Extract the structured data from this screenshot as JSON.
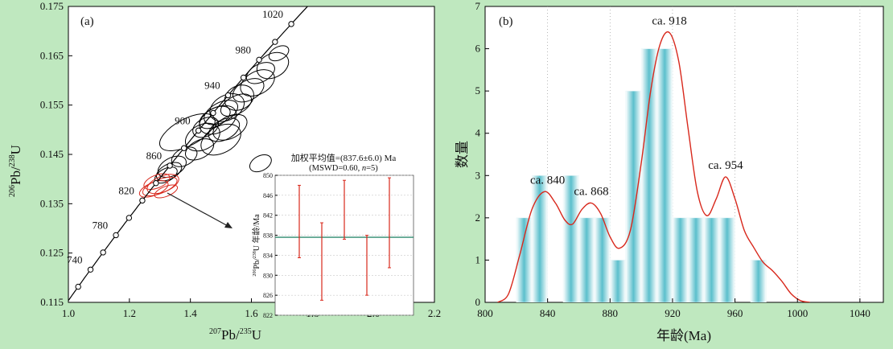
{
  "chart_data": [
    {
      "type": "scatter",
      "panel_label": "(a)",
      "xlim": [
        1.0,
        2.2
      ],
      "ylim": [
        0.115,
        0.175
      ],
      "x_ticks": [
        1.0,
        1.2,
        1.4,
        1.6,
        1.8,
        2.0,
        2.2
      ],
      "x_tick_labels": [
        "1.0",
        "1.2",
        "1.4",
        "1.6",
        "1.8",
        "2.0",
        "2.2"
      ],
      "y_ticks": [
        0.115,
        0.125,
        0.135,
        0.145,
        0.155,
        0.165,
        0.175
      ],
      "y_tick_labels": [
        "0.115",
        "0.125",
        "0.135",
        "0.145",
        "0.155",
        "0.165",
        "0.175"
      ],
      "xlabel": {
        "sup": "207",
        "main": "Pb/",
        "sup2": "235",
        "end": "U"
      },
      "ylabel": {
        "sup": "206",
        "main": "Pb/",
        "sup2": "238",
        "end": "U"
      },
      "concordia_age_labels": [
        "740",
        "780",
        "820",
        "860",
        "900",
        "940",
        "980",
        "1020"
      ],
      "ellipses_black": [
        {
          "x": 1.69,
          "y": 0.1655,
          "rx": 0.035,
          "ry": 0.0013
        },
        {
          "x": 1.67,
          "y": 0.163,
          "rx": 0.055,
          "ry": 0.0024
        },
        {
          "x": 1.63,
          "y": 0.1615,
          "rx": 0.05,
          "ry": 0.0018
        },
        {
          "x": 1.62,
          "y": 0.1595,
          "rx": 0.06,
          "ry": 0.0023
        },
        {
          "x": 1.59,
          "y": 0.158,
          "rx": 0.055,
          "ry": 0.002
        },
        {
          "x": 1.56,
          "y": 0.1565,
          "rx": 0.05,
          "ry": 0.0024
        },
        {
          "x": 1.55,
          "y": 0.155,
          "rx": 0.055,
          "ry": 0.0018
        },
        {
          "x": 1.52,
          "y": 0.1545,
          "rx": 0.06,
          "ry": 0.0025
        },
        {
          "x": 1.5,
          "y": 0.1535,
          "rx": 0.06,
          "ry": 0.002
        },
        {
          "x": 1.49,
          "y": 0.152,
          "rx": 0.065,
          "ry": 0.0025
        },
        {
          "x": 1.48,
          "y": 0.1525,
          "rx": 0.055,
          "ry": 0.0018
        },
        {
          "x": 1.53,
          "y": 0.1505,
          "rx": 0.06,
          "ry": 0.0022
        },
        {
          "x": 1.51,
          "y": 0.15,
          "rx": 0.055,
          "ry": 0.002
        },
        {
          "x": 1.45,
          "y": 0.1505,
          "rx": 0.045,
          "ry": 0.0018
        },
        {
          "x": 1.39,
          "y": 0.1495,
          "rx": 0.1,
          "ry": 0.0027
        },
        {
          "x": 1.44,
          "y": 0.1485,
          "rx": 0.06,
          "ry": 0.0025
        },
        {
          "x": 1.5,
          "y": 0.148,
          "rx": 0.07,
          "ry": 0.0027
        },
        {
          "x": 1.43,
          "y": 0.146,
          "rx": 0.05,
          "ry": 0.0018
        },
        {
          "x": 1.38,
          "y": 0.1445,
          "rx": 0.045,
          "ry": 0.0017
        },
        {
          "x": 1.34,
          "y": 0.1425,
          "rx": 0.05,
          "ry": 0.0018
        },
        {
          "x": 1.33,
          "y": 0.1415,
          "rx": 0.045,
          "ry": 0.0015
        },
        {
          "x": 1.32,
          "y": 0.1408,
          "rx": 0.04,
          "ry": 0.0013
        },
        {
          "x": 1.63,
          "y": 0.1432,
          "rx": 0.038,
          "ry": 0.0015
        }
      ],
      "ellipses_red": [
        {
          "x": 1.29,
          "y": 0.1395,
          "rx": 0.045,
          "ry": 0.0013
        },
        {
          "x": 1.3,
          "y": 0.1385,
          "rx": 0.06,
          "ry": 0.0014
        },
        {
          "x": 1.31,
          "y": 0.139,
          "rx": 0.055,
          "ry": 0.0016
        },
        {
          "x": 1.28,
          "y": 0.138,
          "rx": 0.05,
          "ry": 0.0013
        },
        {
          "x": 1.32,
          "y": 0.1375,
          "rx": 0.04,
          "ry": 0.001
        }
      ],
      "inset": {
        "title_line1": "加权平均值=(837.6±6.0) Ma",
        "title_line2_prefix": "(MSWD=0.60, ",
        "title_line2_n": "n",
        "title_line2_suffix": "=5)",
        "ylabel_sup": "206",
        "ylabel_main": "Pb/",
        "ylabel_sup2": "238",
        "ylabel_end": "U 年龄/Ma",
        "ylim": [
          822,
          850
        ],
        "y_ticks": [
          822,
          826,
          830,
          834,
          838,
          842,
          846,
          850
        ],
        "y_tick_labels": [
          "822",
          "826",
          "830",
          "834",
          "838",
          "842",
          "846",
          "850"
        ],
        "mean": 837.6,
        "error_bars": [
          {
            "low": 833.5,
            "high": 848
          },
          {
            "low": 825,
            "high": 840.5
          },
          {
            "low": 837.2,
            "high": 849
          },
          {
            "low": 826,
            "high": 838
          },
          {
            "low": 831.5,
            "high": 849.5
          }
        ]
      }
    },
    {
      "type": "bar",
      "panel_label": "(b)",
      "xlabel": "年龄(Ma)",
      "ylabel": "数量",
      "xlim": [
        800,
        1055
      ],
      "ylim": [
        0,
        7
      ],
      "x_ticks": [
        800,
        840,
        880,
        920,
        960,
        1000,
        1040
      ],
      "x_tick_labels": [
        "800",
        "840",
        "880",
        "920",
        "960",
        "1000",
        "1040"
      ],
      "y_ticks": [
        0,
        1,
        2,
        3,
        4,
        5,
        6,
        7
      ],
      "y_tick_labels": [
        "0",
        "1",
        "2",
        "3",
        "4",
        "5",
        "6",
        "7"
      ],
      "bin_width": 10,
      "bins": [
        {
          "start": 820,
          "value": 2
        },
        {
          "start": 830,
          "value": 3
        },
        {
          "start": 840,
          "value": 0
        },
        {
          "start": 850,
          "value": 3
        },
        {
          "start": 860,
          "value": 2
        },
        {
          "start": 870,
          "value": 2
        },
        {
          "start": 880,
          "value": 1
        },
        {
          "start": 890,
          "value": 5
        },
        {
          "start": 900,
          "value": 6
        },
        {
          "start": 910,
          "value": 6
        },
        {
          "start": 920,
          "value": 2
        },
        {
          "start": 930,
          "value": 2
        },
        {
          "start": 940,
          "value": 2
        },
        {
          "start": 950,
          "value": 2
        },
        {
          "start": 960,
          "value": 0
        },
        {
          "start": 970,
          "value": 1
        }
      ],
      "kde": [
        [
          808,
          0
        ],
        [
          815,
          0.2
        ],
        [
          822,
          1.1
        ],
        [
          830,
          2.2
        ],
        [
          838,
          2.62
        ],
        [
          845,
          2.35
        ],
        [
          851,
          1.95
        ],
        [
          856,
          1.85
        ],
        [
          862,
          2.2
        ],
        [
          868,
          2.35
        ],
        [
          874,
          2.1
        ],
        [
          880,
          1.55
        ],
        [
          886,
          1.28
        ],
        [
          893,
          1.7
        ],
        [
          900,
          3.3
        ],
        [
          906,
          5.0
        ],
        [
          912,
          6.1
        ],
        [
          918,
          6.38
        ],
        [
          924,
          5.7
        ],
        [
          930,
          4.1
        ],
        [
          936,
          2.6
        ],
        [
          942,
          2.05
        ],
        [
          948,
          2.45
        ],
        [
          954,
          2.97
        ],
        [
          960,
          2.45
        ],
        [
          966,
          1.7
        ],
        [
          972,
          1.3
        ],
        [
          978,
          0.95
        ],
        [
          984,
          0.75
        ],
        [
          990,
          0.5
        ],
        [
          996,
          0.2
        ],
        [
          1002,
          0.04
        ],
        [
          1008,
          0
        ]
      ],
      "peak_labels": [
        {
          "text": "ca. 840",
          "x": 840,
          "y": 2.62
        },
        {
          "text": "ca. 868",
          "x": 868,
          "y": 2.35
        },
        {
          "text": "ca. 918",
          "x": 918,
          "y": 6.38
        },
        {
          "text": "ca. 954",
          "x": 954,
          "y": 2.97
        }
      ],
      "bar_color": "#5bbfcc",
      "kde_color": "#d8281c"
    }
  ]
}
